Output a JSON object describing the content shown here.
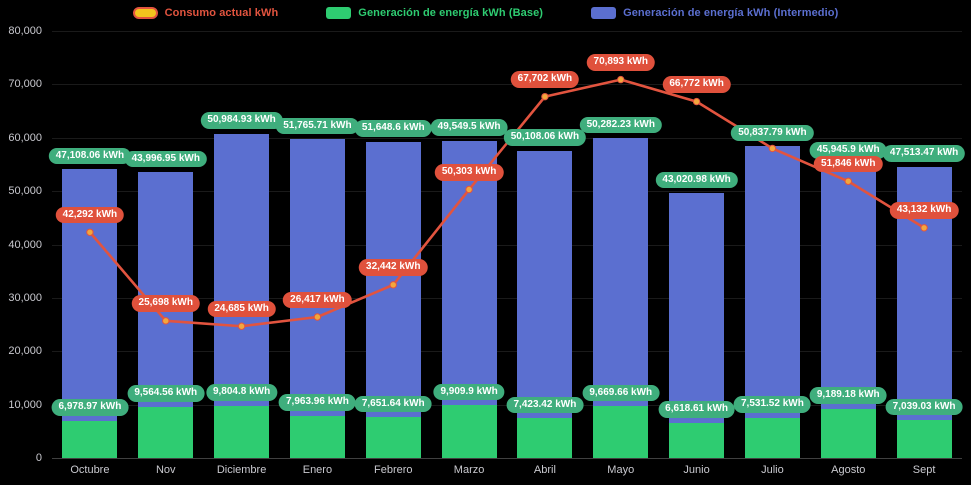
{
  "chart_data": {
    "type": "bar",
    "title": "",
    "background": "#000000",
    "legend_position": "top",
    "grid": true,
    "ylim": [
      0,
      80000
    ],
    "xlabel": "",
    "ylabel": "",
    "y_ticks": [
      "80,000",
      "70,000",
      "60,000",
      "50,000",
      "40,000",
      "30,000",
      "20,000",
      "10,000",
      "0"
    ],
    "categories": [
      "Octubre",
      "Nov",
      "Diciembre",
      "Enero",
      "Febrero",
      "Marzo",
      "Abril",
      "Mayo",
      "Junio",
      "Julio",
      "Agosto",
      "Sept"
    ],
    "legend": [
      {
        "label": "Consumo actual kWh",
        "series_type": "line",
        "color": "#e2543f",
        "swatch_fill": "#f2c41d",
        "swatch_border": "#e2543f"
      },
      {
        "label": "Generación de energía kWh (Base)",
        "series_type": "bar",
        "color": "#2ecc71"
      },
      {
        "label": "Generación de energía kWh (Intermedio)",
        "series_type": "bar",
        "color": "#5b6fd0"
      }
    ],
    "series": [
      {
        "name": "Generación de energía kWh (Base)",
        "type": "bar",
        "stack": "total",
        "color": "#2ecc71",
        "values": [
          6978.97,
          9564.56,
          9804.8,
          7963.96,
          7651.64,
          9909.9,
          7423.42,
          9669.66,
          6618.61,
          7531.52,
          9189.18,
          7039.03
        ],
        "labels": [
          "6,978.97 kWh",
          "9,564.56 kWh",
          "9,804.8 kWh",
          "7,963.96 kWh",
          "7,651.64 kWh",
          "9,909.9 kWh",
          "7,423.42 kWh",
          "9,669.66 kWh",
          "6,618.61 kWh",
          "7,531.52 kWh",
          "9,189.18 kWh",
          "7,039.03 kWh"
        ]
      },
      {
        "name": "Generación de energía kWh (Intermedio)",
        "type": "bar",
        "stack": "total",
        "color": "#5b6fd0",
        "values": [
          47108.06,
          43996.95,
          50984.93,
          51765.71,
          51648.6,
          49549.5,
          50108.06,
          50282.23,
          43020.98,
          50837.79,
          45945.9,
          47513.47
        ],
        "labels": [
          "47,108.06 kWh",
          "43,996.95 kWh",
          "50,984.93 kWh",
          "51,765.71 kWh",
          "51,648.6 kWh",
          "49,549.5 kWh",
          "50,108.06 kWh",
          "50,282.23 kWh",
          "43,020.98 kWh",
          "50,837.79 kWh",
          "45,945.9 kWh",
          "47,513.47 kWh"
        ]
      },
      {
        "name": "Consumo actual kWh",
        "type": "line",
        "color": "#e2543f",
        "point_color": "#f2a73d",
        "values": [
          42292,
          25698,
          24685,
          26417,
          32442,
          50303,
          67702,
          70893,
          66772,
          58000,
          51846,
          43132
        ],
        "labels": [
          "42,292 kWh",
          "25,698 kWh",
          "24,685 kWh",
          "26,417 kWh",
          "32,442 kWh",
          "50,303 kWh",
          "67,702 kWh",
          "70,893 kWh",
          "66,772 kWh",
          null,
          "51,846 kWh",
          "43,132 kWh"
        ]
      }
    ],
    "label_pill_colors": {
      "bar": "#3fae7d",
      "line": "#e0513c"
    }
  }
}
